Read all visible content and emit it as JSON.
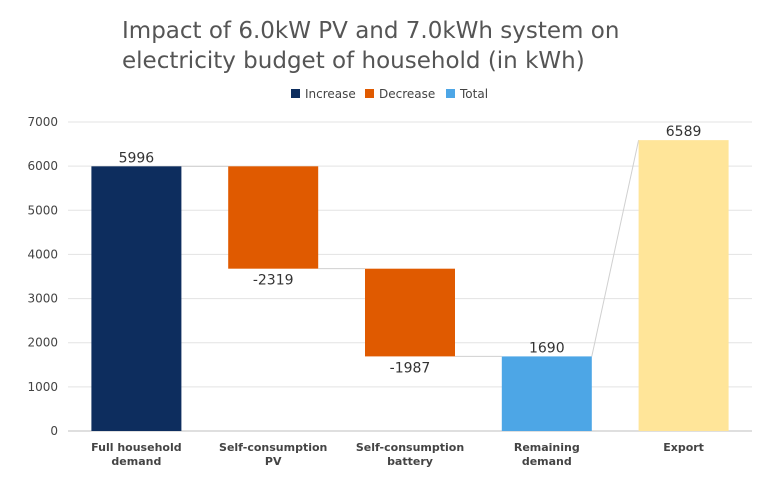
{
  "title": {
    "line1": "Impact of 6.0kW PV and 7.0kWh system on",
    "line2": "electricity budget of household (in kWh)"
  },
  "legend": [
    {
      "label": "Increase",
      "color": "#0d2d5e"
    },
    {
      "label": "Decrease",
      "color": "#e05a00"
    },
    {
      "label": "Total",
      "color": "#4da6e6"
    }
  ],
  "chart_data": {
    "type": "bar",
    "subtype": "waterfall",
    "categories": [
      [
        "Full household",
        "demand"
      ],
      [
        "Self-consumption",
        "PV"
      ],
      [
        "Self-consumption",
        "battery"
      ],
      [
        "Remaining",
        "demand"
      ],
      [
        "Export"
      ]
    ],
    "values": [
      5996,
      -2319,
      -1987,
      1690,
      6589
    ],
    "data_labels": [
      "5996",
      "-2319",
      "-1987",
      "1690",
      "6589"
    ],
    "bar_kinds": [
      "increase",
      "decrease",
      "decrease",
      "total",
      "export"
    ],
    "colors": {
      "increase": "#0d2d5e",
      "decrease": "#e05a00",
      "total": "#4da6e6",
      "export": "#ffe599"
    },
    "ylim": [
      0,
      7000
    ],
    "yticks": [
      0,
      1000,
      2000,
      3000,
      4000,
      5000,
      6000,
      7000
    ],
    "grid": true,
    "legend_position": "top-center",
    "xlabel": "",
    "ylabel": ""
  }
}
